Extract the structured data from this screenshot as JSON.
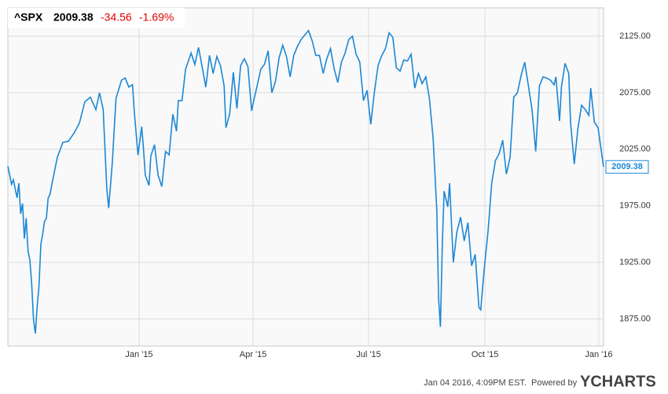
{
  "chart_data": {
    "type": "line",
    "header": {
      "symbol": "^SPX",
      "price": "2009.38",
      "change": "-34.56",
      "change_percent": "-1.69%"
    },
    "footer": "Jan 04 2016, 4:09PM EST.",
    "powered_by": "Powered by",
    "brand": "YCHARTS",
    "x": [
      0,
      2,
      3,
      5,
      6,
      7,
      8,
      9,
      10,
      11,
      12,
      13,
      14,
      15,
      16,
      17,
      18,
      19,
      20,
      21,
      22,
      23,
      24,
      27,
      30,
      33,
      36,
      39,
      42,
      45,
      48,
      50,
      52,
      54,
      55,
      57,
      59,
      62,
      64,
      66,
      68,
      69,
      71,
      73,
      74,
      75,
      77,
      78,
      80,
      82,
      84,
      86,
      88,
      90,
      92,
      93,
      95,
      97,
      100,
      102,
      104,
      106,
      108,
      110,
      112,
      114,
      116,
      118,
      119,
      121,
      123,
      125,
      127,
      129,
      131,
      133,
      134,
      136,
      138,
      140,
      142,
      144,
      146,
      148,
      150,
      152,
      154,
      156,
      158,
      160,
      162,
      164,
      166,
      168,
      170,
      172,
      174,
      176,
      178,
      180,
      182,
      184,
      186,
      188,
      190,
      192,
      194,
      196,
      198,
      200,
      202,
      204,
      206,
      208,
      210,
      212,
      214,
      216,
      218,
      220,
      222,
      224,
      226,
      228,
      230,
      232,
      234,
      235,
      236,
      237,
      238,
      240,
      241,
      243,
      245,
      247,
      249,
      251,
      253,
      255,
      257,
      258,
      260,
      262,
      264,
      266,
      268,
      270,
      272,
      274,
      276,
      278,
      280,
      282,
      284,
      286,
      288,
      290,
      292,
      294,
      296,
      298,
      299,
      301,
      302,
      304,
      306,
      307,
      309,
      311,
      313,
      315,
      317,
      318,
      320,
      322,
      325
    ],
    "series": [
      {
        "name": "^SPX",
        "color": "#1b87d6",
        "values": [
          2010,
          1994,
          1998,
          1982,
          1995,
          1968,
          1977,
          1946,
          1964,
          1935,
          1927,
          1906,
          1874,
          1862,
          1886,
          1904,
          1941,
          1950,
          1961,
          1964,
          1982,
          1985,
          1994,
          2018,
          2031,
          2032,
          2039,
          2048,
          2067,
          2071,
          2060,
          2075,
          2060,
          1990,
          1973,
          2013,
          2070,
          2086,
          2088,
          2080,
          2082,
          2058,
          2020,
          2045,
          2025,
          2002,
          1993,
          2019,
          2029,
          2002,
          1992,
          2023,
          2020,
          2056,
          2041,
          2068,
          2068,
          2096,
          2110,
          2100,
          2115,
          2098,
          2080,
          2108,
          2092,
          2107,
          2099,
          2081,
          2044,
          2056,
          2093,
          2061,
          2099,
          2105,
          2098,
          2059,
          2067,
          2081,
          2096,
          2100,
          2112,
          2075,
          2085,
          2106,
          2117,
          2107,
          2089,
          2108,
          2116,
          2122,
          2126,
          2130,
          2121,
          2108,
          2108,
          2092,
          2105,
          2114,
          2096,
          2084,
          2102,
          2110,
          2122,
          2125,
          2109,
          2102,
          2068,
          2077,
          2047,
          2076,
          2099,
          2108,
          2114,
          2128,
          2124,
          2097,
          2094,
          2104,
          2103,
          2109,
          2079,
          2092,
          2083,
          2089,
          2070,
          2035,
          1971,
          1893,
          1868,
          1940,
          1988,
          1974,
          1995,
          1925,
          1952,
          1965,
          1944,
          1960,
          1922,
          1932,
          1885,
          1883,
          1921,
          1953,
          1995,
          2015,
          2021,
          2033,
          2003,
          2018,
          2071,
          2075,
          2090,
          2102,
          2081,
          2060,
          2023,
          2081,
          2089,
          2088,
          2086,
          2082,
          2089,
          2050,
          2080,
          2101,
          2092,
          2049,
          2012,
          2043,
          2064,
          2060,
          2055,
          2079,
          2049,
          2044,
          2009.38
        ],
        "value_labels_last": "2009.38"
      }
    ],
    "xlim": [
      0,
      325
    ],
    "xticks": [
      {
        "value": 71.6,
        "label": "Jan '15"
      },
      {
        "value": 133.8,
        "label": "Apr '15"
      },
      {
        "value": 196.8,
        "label": "Jul '15"
      },
      {
        "value": 260.3,
        "label": "Oct '15"
      },
      {
        "value": 322.4,
        "label": "Jan '16"
      }
    ],
    "ylim": [
      1851,
      2150
    ],
    "yticks": [
      {
        "value": 1875,
        "label": "1875.00"
      },
      {
        "value": 1925,
        "label": "1925.00"
      },
      {
        "value": 1975,
        "label": "1975.00"
      },
      {
        "value": 2025,
        "label": "2025.00"
      },
      {
        "value": 2075,
        "label": "2075.00"
      },
      {
        "value": 2125,
        "label": "2125.00"
      }
    ],
    "grid": true
  }
}
